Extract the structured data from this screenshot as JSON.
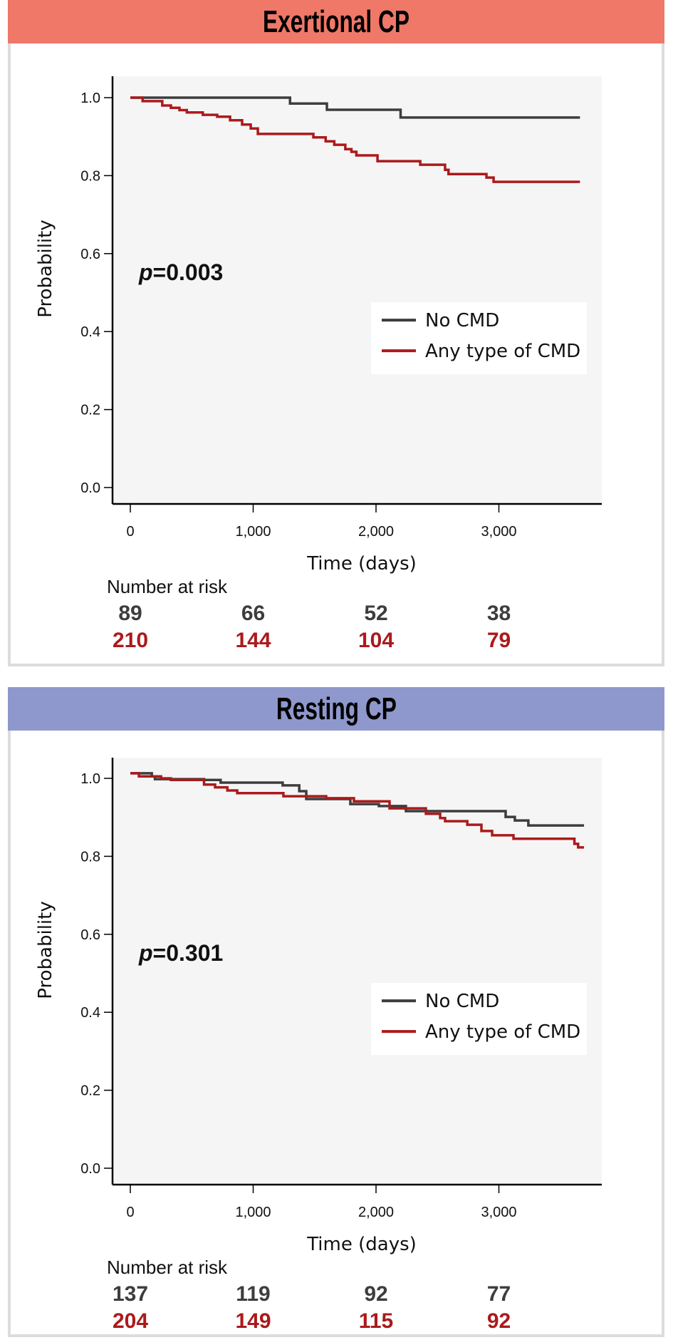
{
  "colors": {
    "header_exertional": "#ef7868",
    "header_resting": "#8f98cc",
    "no_cmd": "#3d3d3d",
    "any_cmd": "#ab1a1c",
    "plot_bg": "#f5f5f5",
    "panel_border": "#dcdcdc"
  },
  "panels": [
    {
      "title": "Exertional CP",
      "p_label": "p",
      "p_value": "=0.003",
      "risk_title": "Number at risk",
      "risk_no_cmd": [
        "89",
        "66",
        "52",
        "38"
      ],
      "risk_any_cmd": [
        "210",
        "144",
        "104",
        "79"
      ]
    },
    {
      "title": "Resting CP",
      "p_label": "p",
      "p_value": "=0.301",
      "risk_title": "Number at risk",
      "risk_no_cmd": [
        "137",
        "119",
        "92",
        "77"
      ],
      "risk_any_cmd": [
        "204",
        "149",
        "115",
        "92"
      ]
    }
  ],
  "chart_data": [
    {
      "type": "line",
      "subtype": "kaplan-meier step",
      "title": "Exertional CP",
      "xlabel": "Time (days)",
      "ylabel": "Probability",
      "xlim": [
        -150,
        3850
      ],
      "ylim": [
        -0.04,
        1.05
      ],
      "x_ticks": [
        0,
        1000,
        2000,
        3000
      ],
      "x_tick_labels": [
        "0",
        "1,000",
        "2,000",
        "3,000"
      ],
      "y_ticks": [
        0.0,
        0.2,
        0.4,
        0.6,
        0.8,
        1.0
      ],
      "y_tick_labels": [
        "0.0",
        "0.2",
        "0.4",
        "0.6",
        "0.8",
        "1.0"
      ],
      "grid": false,
      "legend": [
        "No CMD",
        "Any type of CMD"
      ],
      "legend_position": "right-middle",
      "annotation": "p=0.003",
      "series": [
        {
          "name": "No CMD",
          "x": [
            0,
            1300,
            1600,
            2200,
            3660
          ],
          "y": [
            1.0,
            0.985,
            0.969,
            0.949,
            0.949
          ]
        },
        {
          "name": "Any type of CMD",
          "x": [
            0,
            100,
            260,
            330,
            400,
            460,
            590,
            707,
            812,
            910,
            980,
            1038,
            1490,
            1590,
            1660,
            1750,
            1800,
            1840,
            2012,
            2360,
            2562,
            2590,
            2899,
            2957,
            3660
          ],
          "y": [
            1.0,
            0.991,
            0.98,
            0.974,
            0.968,
            0.962,
            0.956,
            0.951,
            0.942,
            0.931,
            0.921,
            0.907,
            0.898,
            0.888,
            0.879,
            0.868,
            0.861,
            0.852,
            0.837,
            0.828,
            0.815,
            0.804,
            0.795,
            0.784,
            0.784
          ]
        }
      ],
      "number_at_risk": {
        "times": [
          0,
          1000,
          2000,
          3000
        ],
        "No CMD": [
          89,
          66,
          52,
          38
        ],
        "Any type of CMD": [
          210,
          144,
          104,
          79
        ]
      }
    },
    {
      "type": "line",
      "subtype": "kaplan-meier step",
      "title": "Resting CP",
      "xlabel": "Time (days)",
      "ylabel": "Probability",
      "xlim": [
        -150,
        3850
      ],
      "ylim": [
        -0.04,
        1.05
      ],
      "x_ticks": [
        0,
        1000,
        2000,
        3000
      ],
      "x_tick_labels": [
        "0",
        "1,000",
        "2,000",
        "3,000"
      ],
      "y_ticks": [
        0.0,
        0.2,
        0.4,
        0.6,
        0.8,
        1.0
      ],
      "y_tick_labels": [
        "0.0",
        "0.2",
        "0.4",
        "0.6",
        "0.8",
        "1.0"
      ],
      "grid": false,
      "legend": [
        "No CMD",
        "Any type of CMD"
      ],
      "legend_position": "right-middle",
      "annotation": "p=0.301",
      "series": [
        {
          "name": "No CMD",
          "x": [
            0,
            175,
            200,
            600,
            735,
            1240,
            1375,
            1432,
            1791,
            2023,
            2243,
            3055,
            3130,
            3240,
            3693
          ],
          "y": [
            1.013,
            1.005,
            0.998,
            0.996,
            0.989,
            0.982,
            0.967,
            0.947,
            0.934,
            0.929,
            0.916,
            0.901,
            0.892,
            0.879,
            0.879
          ]
        },
        {
          "name": "Any type of CMD",
          "x": [
            0,
            70,
            250,
            330,
            600,
            690,
            790,
            870,
            1246,
            1594,
            1820,
            2110,
            2406,
            2522,
            2562,
            2743,
            2858,
            2945,
            3119,
            3615,
            3645,
            3693
          ],
          "y": [
            1.013,
            1.005,
            1.0,
            0.996,
            0.984,
            0.977,
            0.969,
            0.962,
            0.954,
            0.949,
            0.941,
            0.923,
            0.909,
            0.898,
            0.89,
            0.881,
            0.865,
            0.854,
            0.845,
            0.832,
            0.823,
            0.823
          ]
        }
      ],
      "number_at_risk": {
        "times": [
          0,
          1000,
          2000,
          3000
        ],
        "No CMD": [
          137,
          119,
          92,
          77
        ],
        "Any type of CMD": [
          204,
          149,
          115,
          92
        ]
      }
    }
  ]
}
